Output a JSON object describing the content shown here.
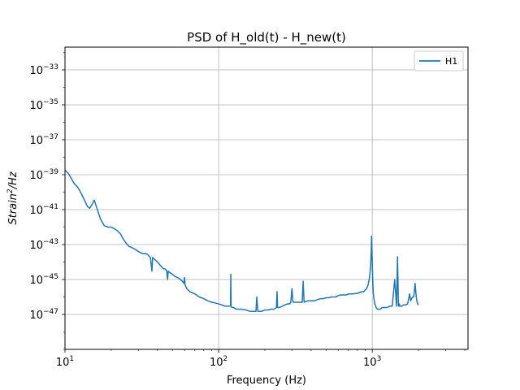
{
  "chart_data": {
    "type": "line",
    "title": "PSD of H_old(t) - H_new(t)",
    "xlabel": "Frequency (Hz)",
    "ylabel_base": "Strain",
    "ylabel_sup": "2",
    "ylabel_tail": "/Hz",
    "x_scale": "log",
    "y_scale": "log",
    "xlim": [
      10,
      4200
    ],
    "ylim": [
      1e-49,
      2e-32
    ],
    "grid": true,
    "legend": "top-right",
    "x_ticks": [
      {
        "value": 10,
        "base": "10",
        "exp": "1"
      },
      {
        "value": 100,
        "base": "10",
        "exp": "2"
      },
      {
        "value": 1000,
        "base": "10",
        "exp": "3"
      }
    ],
    "y_ticks": [
      {
        "value": 1e-33,
        "base": "10",
        "exp": "−33"
      },
      {
        "value": 1e-35,
        "base": "10",
        "exp": "−35"
      },
      {
        "value": 1e-37,
        "base": "10",
        "exp": "−37"
      },
      {
        "value": 1e-39,
        "base": "10",
        "exp": "−39"
      },
      {
        "value": 1e-41,
        "base": "10",
        "exp": "−41"
      },
      {
        "value": 1e-43,
        "base": "10",
        "exp": "−43"
      },
      {
        "value": 1e-45,
        "base": "10",
        "exp": "−45"
      },
      {
        "value": 1e-47,
        "base": "10",
        "exp": "−47"
      }
    ],
    "series": [
      {
        "name": "H1",
        "color": "#1f77b4",
        "x": [
          10,
          10.5,
          11,
          11.5,
          12,
          12.5,
          13,
          13.5,
          14,
          14.5,
          15,
          15.5,
          16,
          17,
          18,
          19,
          20,
          21,
          22,
          23,
          24,
          25,
          26,
          28,
          30,
          32,
          34,
          36,
          36.8,
          37.2,
          38,
          40,
          42,
          44,
          45,
          46,
          46.5,
          47,
          48,
          50,
          52,
          55,
          58,
          59.5,
          60,
          60.5,
          62,
          65,
          70,
          75,
          80,
          85,
          90,
          95,
          100,
          105,
          110,
          115,
          118,
          119.5,
          120,
          120.5,
          122,
          125,
          130,
          140,
          150,
          160,
          170,
          175,
          177,
          180,
          190,
          200,
          210,
          220,
          230,
          238,
          240,
          242,
          250,
          260,
          280,
          290,
          295,
          300,
          305,
          310,
          330,
          350,
          355,
          360,
          380,
          400,
          420,
          440,
          460,
          480,
          500,
          520,
          540,
          560,
          580,
          600,
          620,
          650,
          680,
          700,
          720,
          750,
          780,
          800,
          830,
          860,
          880,
          900,
          920,
          940,
          955,
          965,
          975,
          985,
          990,
          995,
          1000,
          1005,
          1010,
          1015,
          1025,
          1040,
          1060,
          1080,
          1100,
          1130,
          1160,
          1200,
          1250,
          1300,
          1350,
          1400,
          1440,
          1460,
          1470,
          1480,
          1490,
          1500,
          1510,
          1520,
          1540,
          1560,
          1600,
          1650,
          1700,
          1750,
          1780,
          1800,
          1830,
          1860,
          1880,
          1900,
          1920,
          1940,
          1960,
          1980,
          2000
        ],
        "y": [
          1.8e-39,
          1.2e-39,
          6e-40,
          3e-40,
          2.1e-40,
          1.2e-40,
          6e-41,
          3e-41,
          1.5e-41,
          1.2e-41,
          2e-41,
          3.5e-41,
          1.5e-41,
          3e-42,
          1.2e-42,
          1e-42,
          1e-42,
          8e-43,
          6e-43,
          4e-43,
          2e-43,
          1.2e-43,
          8e-44,
          6e-44,
          4e-44,
          3e-44,
          3e-44,
          1.8e-44,
          3e-45,
          1.8e-44,
          1.5e-44,
          1e-44,
          6e-45,
          4e-45,
          4e-45,
          3e-45,
          1e-45,
          3e-45,
          2.5e-45,
          2e-45,
          1.5e-45,
          1.2e-45,
          8e-46,
          6e-46,
          1.3e-45,
          5e-46,
          3e-46,
          2e-46,
          1.5e-46,
          1e-46,
          8e-47,
          6e-47,
          5e-47,
          4.5e-47,
          4e-47,
          3.5e-47,
          3e-47,
          3e-47,
          3e-47,
          3e-47,
          2e-45,
          3e-47,
          2.5e-47,
          2.5e-47,
          2e-47,
          2e-47,
          1.8e-47,
          1.5e-47,
          1.5e-47,
          1.5e-47,
          1e-46,
          1.5e-47,
          1.5e-47,
          1.8e-47,
          1.8e-47,
          2e-47,
          2e-47,
          2.5e-47,
          2e-46,
          2.5e-47,
          2.5e-47,
          3e-47,
          4e-47,
          4e-47,
          5e-47,
          3e-46,
          5e-47,
          5e-47,
          5e-47,
          5e-47,
          8e-46,
          5e-47,
          6e-47,
          6e-47,
          6e-47,
          7e-47,
          8e-47,
          8e-47,
          9e-47,
          9e-47,
          1e-46,
          1e-46,
          1e-46,
          1.2e-46,
          1.3e-46,
          1.3e-46,
          1.3e-46,
          1.5e-46,
          1.5e-46,
          1.5e-46,
          1.6e-46,
          1.6e-46,
          1.8e-46,
          2e-46,
          2e-46,
          2.5e-46,
          3e-46,
          5e-46,
          1e-45,
          2e-45,
          5e-45,
          4e-44,
          3e-43,
          6e-44,
          1e-44,
          2e-45,
          5e-46,
          2e-46,
          8e-47,
          4e-47,
          2.5e-47,
          2e-47,
          2e-47,
          2e-47,
          2.5e-47,
          2.5e-47,
          2.5e-47,
          3e-47,
          3e-47,
          1e-45,
          3e-47,
          2e-44,
          1e-45,
          3e-47,
          3e-47,
          4e-47,
          3e-47,
          3e-47,
          3e-47,
          3e-47,
          3.5e-47,
          3.5e-47,
          4e-47,
          1.5e-46,
          6e-47,
          8e-47,
          1e-46,
          1e-46,
          2e-46,
          6e-46,
          2e-46,
          8e-47,
          5e-47,
          4e-47,
          3.5e-47
        ]
      }
    ]
  }
}
